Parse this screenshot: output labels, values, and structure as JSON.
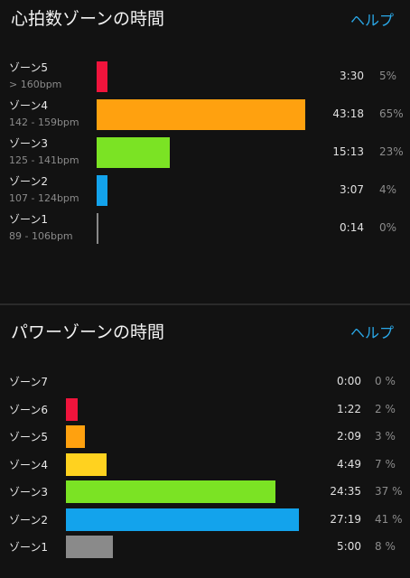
{
  "heart_rate": {
    "title": "心拍数ゾーンの時間",
    "help_label": "ヘルプ",
    "zones": [
      {
        "name": "ゾーン5",
        "range": "> 160bpm",
        "time": "3:30",
        "percent": "5%",
        "fraction": 0.054,
        "color": "#f0143c"
      },
      {
        "name": "ゾーン4",
        "range": "142 - 159bpm",
        "time": "43:18",
        "percent": "65%",
        "fraction": 1.0,
        "color": "#ffa10f"
      },
      {
        "name": "ゾーン3",
        "range": "125 - 141bpm",
        "time": "15:13",
        "percent": "23%",
        "fraction": 0.35,
        "color": "#7be324"
      },
      {
        "name": "ゾーン2",
        "range": "107 - 124bpm",
        "time": "3:07",
        "percent": "4%",
        "fraction": 0.05,
        "color": "#13a3ec"
      },
      {
        "name": "ゾーン1",
        "range": "89 - 106bpm",
        "time": "0:14",
        "percent": "0%",
        "fraction": 0.004,
        "color": "#888888"
      }
    ]
  },
  "power": {
    "title": "パワーゾーンの時間",
    "help_label": "ヘルプ",
    "zones": [
      {
        "name": "ゾーン7",
        "time": "0:00",
        "percent": "0 %",
        "fraction": 0.0,
        "color": "#ff1a2e"
      },
      {
        "name": "ゾーン6",
        "time": "1:22",
        "percent": "2 %",
        "fraction": 0.05,
        "color": "#f0143c"
      },
      {
        "name": "ゾーン5",
        "time": "2:09",
        "percent": "3 %",
        "fraction": 0.08,
        "color": "#ffa10f"
      },
      {
        "name": "ゾーン4",
        "time": "4:49",
        "percent": "7 %",
        "fraction": 0.175,
        "color": "#ffd21f"
      },
      {
        "name": "ゾーン3",
        "time": "24:35",
        "percent": "37 %",
        "fraction": 0.9,
        "color": "#7be324"
      },
      {
        "name": "ゾーン2",
        "time": "27:19",
        "percent": "41 %",
        "fraction": 1.0,
        "color": "#13a3ec"
      },
      {
        "name": "ゾーン1",
        "time": "5:00",
        "percent": "8 %",
        "fraction": 0.2,
        "color": "#8a8a8a"
      }
    ]
  }
}
